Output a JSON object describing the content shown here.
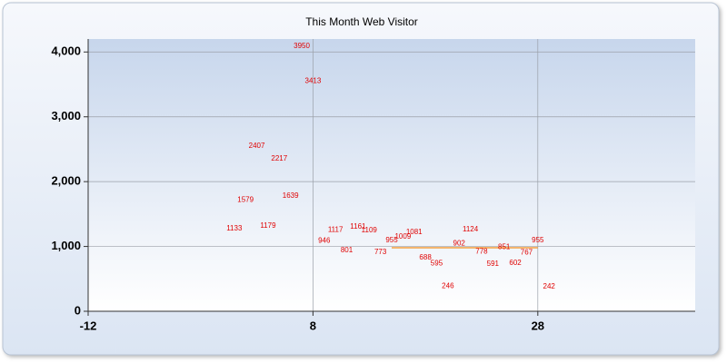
{
  "chart_data": {
    "type": "scatter",
    "title": "This Month Web Visitor",
    "x": [
      1,
      2,
      3,
      4,
      5,
      6,
      7,
      8,
      9,
      10,
      11,
      12,
      13,
      14,
      15,
      16,
      17,
      18,
      19,
      20,
      21,
      22,
      23,
      24,
      25,
      26,
      27,
      28,
      29
    ],
    "values": [
      1133,
      1579,
      2407,
      1179,
      2217,
      1639,
      3950,
      3413,
      946,
      1117,
      801,
      1161,
      1109,
      773,
      955,
      1009,
      1081,
      688,
      595,
      246,
      902,
      1124,
      778,
      591,
      851,
      602,
      767,
      955,
      242
    ],
    "color": "#e00000",
    "line": {
      "x": [
        15,
        28
      ],
      "values": [
        980,
        980
      ],
      "color": "#f5a040"
    },
    "xlim": [
      -12,
      42
    ],
    "xticks": [
      -12,
      8,
      28
    ],
    "ylim": [
      0,
      4200
    ],
    "yticks": [
      0,
      {
        "value": 1000,
        "label": "1,000"
      },
      {
        "value": 2000,
        "label": "2,000"
      },
      {
        "value": 3000,
        "label": "3,000"
      },
      {
        "value": 4000,
        "label": "4,000"
      }
    ],
    "grid": true
  }
}
